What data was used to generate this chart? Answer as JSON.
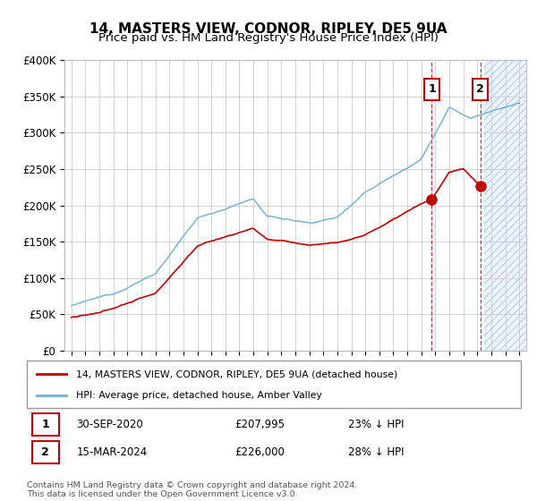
{
  "title": "14, MASTERS VIEW, CODNOR, RIPLEY, DE5 9UA",
  "subtitle": "Price paid vs. HM Land Registry's House Price Index (HPI)",
  "ylabel_ticks": [
    "£0",
    "£50K",
    "£100K",
    "£150K",
    "£200K",
    "£250K",
    "£300K",
    "£350K",
    "£400K"
  ],
  "ylim": [
    0,
    400000
  ],
  "xlim_start": 1994.5,
  "xlim_end": 2027.5,
  "hpi_color": "#6baed6",
  "hpi_fill_color": "#c6dbef",
  "price_color": "#c00000",
  "marker1_date": 2020.75,
  "marker1_price": 207995,
  "marker1_label": "30-SEP-2020",
  "marker1_value": "£207,995",
  "marker1_note": "23% ↓ HPI",
  "marker2_date": 2024.21,
  "marker2_price": 226000,
  "marker2_label": "15-MAR-2024",
  "marker2_value": "£226,000",
  "marker2_note": "28% ↓ HPI",
  "legend_label1": "14, MASTERS VIEW, CODNOR, RIPLEY, DE5 9UA (detached house)",
  "legend_label2": "HPI: Average price, detached house, Amber Valley",
  "footer": "Contains HM Land Registry data © Crown copyright and database right 2024.\nThis data is licensed under the Open Government Licence v3.0.",
  "hatch_start": 2024.5,
  "hatch_color": "#ddeeff",
  "bg_color": "#ffffff",
  "grid_color": "#cccccc"
}
